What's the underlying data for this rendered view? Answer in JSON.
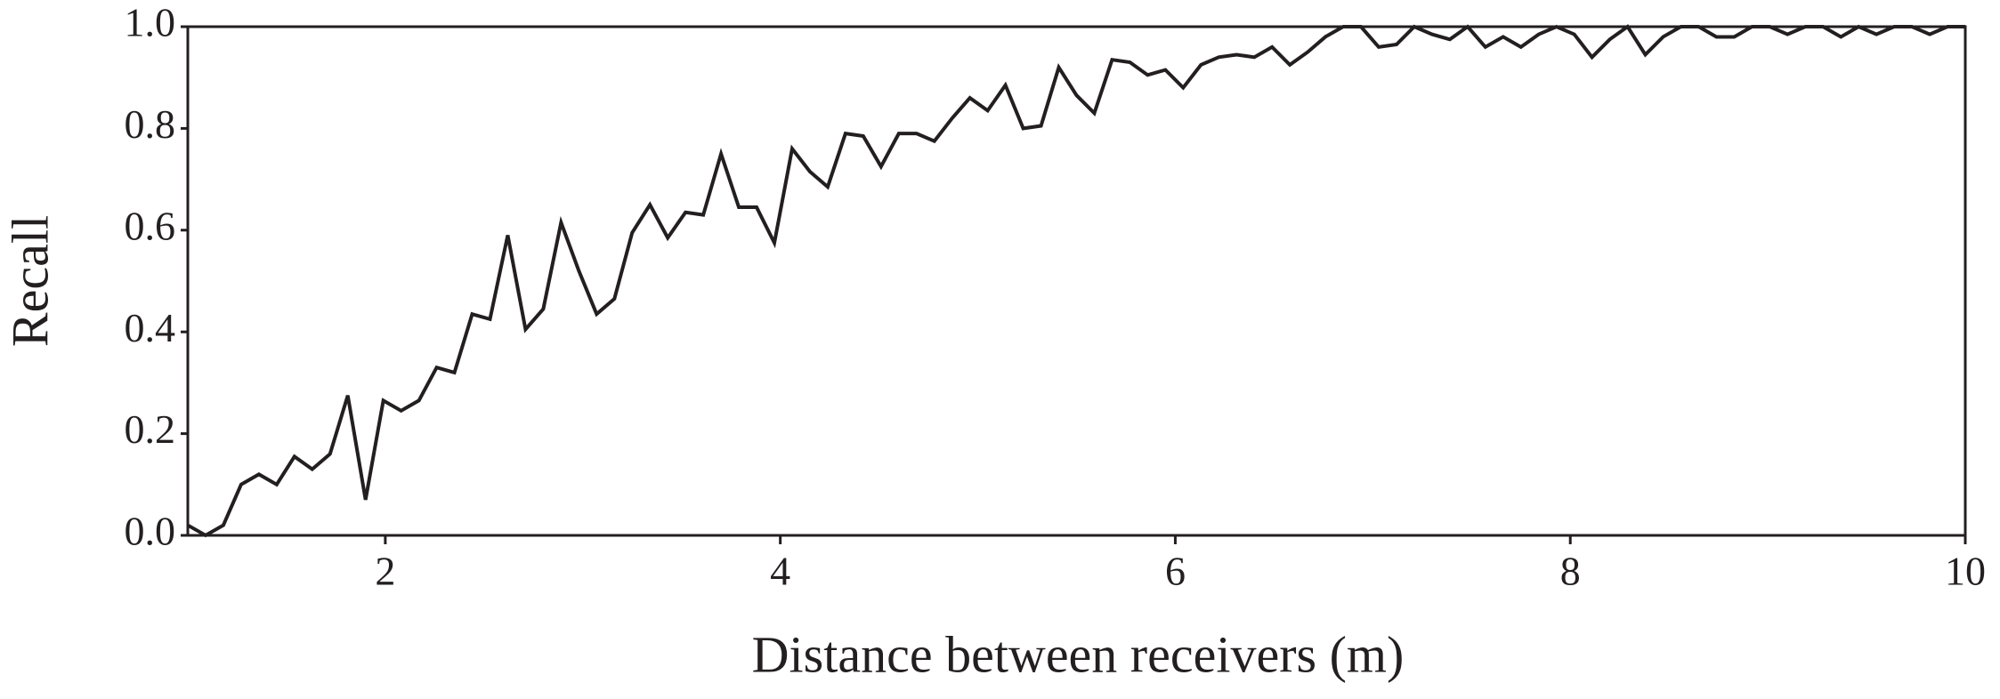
{
  "chart_data": {
    "type": "line",
    "x_label": "Distance between receivers (m)",
    "y_label": "Recall",
    "x": [
      1.0,
      1.09,
      1.18,
      1.27,
      1.36,
      1.45,
      1.54,
      1.63,
      1.72,
      1.81,
      1.9,
      1.99,
      2.08,
      2.17,
      2.26,
      2.35,
      2.44,
      2.53,
      2.62,
      2.71,
      2.8,
      2.89,
      2.98,
      3.07,
      3.16,
      3.25,
      3.34,
      3.43,
      3.52,
      3.61,
      3.7,
      3.79,
      3.88,
      3.97,
      4.06,
      4.15,
      4.24,
      4.33,
      4.42,
      4.51,
      4.6,
      4.69,
      4.78,
      4.87,
      4.96,
      5.05,
      5.14,
      5.23,
      5.32,
      5.41,
      5.5,
      5.59,
      5.68,
      5.77,
      5.86,
      5.95,
      6.04,
      6.13,
      6.22,
      6.31,
      6.4,
      6.49,
      6.58,
      6.67,
      6.76,
      6.85,
      6.94,
      7.03,
      7.12,
      7.21,
      7.3,
      7.39,
      7.48,
      7.57,
      7.66,
      7.75,
      7.84,
      7.93,
      8.02,
      8.11,
      8.2,
      8.29,
      8.38,
      8.47,
      8.56,
      8.65,
      8.74,
      8.83,
      8.92,
      9.01,
      9.1,
      9.19,
      9.28,
      9.37,
      9.46,
      9.55,
      9.64,
      9.73,
      9.82,
      9.91,
      10.0
    ],
    "series": [
      {
        "color": "#231f20",
        "values": [
          0.02,
          0.0,
          0.02,
          0.1,
          0.12,
          0.1,
          0.155,
          0.13,
          0.16,
          0.275,
          0.07,
          0.265,
          0.245,
          0.265,
          0.33,
          0.32,
          0.435,
          0.425,
          0.59,
          0.405,
          0.445,
          0.615,
          0.52,
          0.435,
          0.465,
          0.595,
          0.65,
          0.585,
          0.635,
          0.63,
          0.75,
          0.645,
          0.645,
          0.575,
          0.76,
          0.715,
          0.685,
          0.79,
          0.785,
          0.725,
          0.79,
          0.79,
          0.775,
          0.82,
          0.86,
          0.835,
          0.885,
          0.8,
          0.805,
          0.92,
          0.865,
          0.83,
          0.935,
          0.93,
          0.905,
          0.915,
          0.88,
          0.925,
          0.94,
          0.945,
          0.94,
          0.96,
          0.925,
          0.95,
          0.98,
          1.0,
          1.0,
          0.96,
          0.965,
          1.0,
          0.985,
          0.975,
          1.0,
          0.96,
          0.98,
          0.96,
          0.985,
          1.0,
          0.985,
          0.94,
          0.975,
          1.0,
          0.945,
          0.98,
          1.0,
          1.0,
          0.98,
          0.98,
          1.0,
          1.0,
          0.985,
          1.0,
          1.0,
          0.98,
          1.0,
          0.985,
          1.0,
          1.0,
          0.985,
          1.0,
          1.0
        ]
      }
    ],
    "xlim": [
      1,
      10
    ],
    "xticks": [
      2,
      4,
      6,
      8,
      10
    ],
    "ylim": [
      0,
      1
    ],
    "yticks": [
      {
        "value": 0,
        "label": "0.0"
      },
      0.2,
      0.4,
      0.6,
      0.8,
      {
        "value": 1,
        "label": "1.0"
      }
    ]
  }
}
